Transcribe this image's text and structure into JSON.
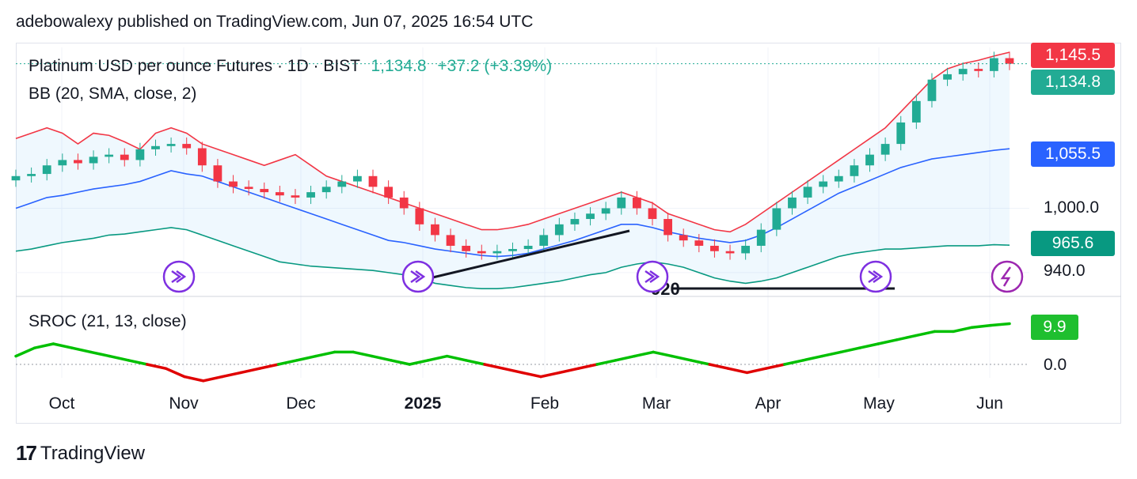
{
  "header": {
    "text": "adebowalexy published on TradingView.com, Jun 07, 2025 16:54 UTC"
  },
  "legend": {
    "symbol": "Platinum USD per ounce Futures · 1D · BIST",
    "last": "1,134.8",
    "change": "+37.2 (+3.39%)",
    "bb": "BB (20, SMA, close, 2)",
    "sroc": "SROC (21, 13, close)"
  },
  "price_tags": {
    "upper": "1,145.5",
    "last": "1,134.8",
    "middle": "1,055.5",
    "lower": "965.6",
    "sroc": "9.9"
  },
  "price_axis": [
    "1,000.0",
    "940.0"
  ],
  "sroc_axis": [
    "0.0"
  ],
  "annotation": "920",
  "footer": {
    "brand": "TradingView"
  },
  "colors": {
    "up": "#22ab94",
    "down": "#f23645",
    "bb_upper": "#f23645",
    "bb_basis": "#2962ff",
    "bb_lower": "#089981",
    "sroc_pos": "#00c000",
    "sroc_neg": "#e00000",
    "marker": "#7e30e1"
  },
  "chart_data": {
    "type": "line",
    "x_ticks": [
      "Oct",
      "Nov",
      "Dec",
      "2025",
      "Feb",
      "Mar",
      "Apr",
      "May",
      "Jun"
    ],
    "price_axis_ticks": [
      1000.0,
      940.0
    ],
    "last_price": 1134.8,
    "bb_upper_last": 1145.5,
    "bb_basis_last": 1055.5,
    "bb_lower_last": 965.6,
    "sroc_last": 9.9,
    "series": [
      {
        "values": [
          1030,
          1032,
          1040,
          1045,
          1042,
          1048,
          1050,
          1045,
          1055,
          1058,
          1060,
          1056,
          1040,
          1025,
          1020,
          1018,
          1015,
          1012,
          1010,
          1015,
          1020,
          1025,
          1030,
          1020,
          1010,
          1000,
          985,
          975,
          965,
          960,
          958,
          960,
          962,
          965,
          975,
          985,
          990,
          995,
          1000,
          1010,
          1000,
          990,
          975,
          970,
          965,
          960,
          958,
          965,
          980,
          1000,
          1010,
          1020,
          1025,
          1030,
          1040,
          1050,
          1060,
          1080,
          1100,
          1120,
          1125,
          1130,
          1128,
          1140,
          1134.8
        ]
      },
      {
        "values": [
          1065,
          1070,
          1075,
          1070,
          1060,
          1070,
          1068,
          1062,
          1055,
          1070,
          1075,
          1070,
          1060,
          1055,
          1050,
          1045,
          1040,
          1045,
          1050,
          1040,
          1030,
          1025,
          1020,
          1015,
          1010,
          1005,
          1000,
          995,
          990,
          985,
          980,
          980,
          982,
          985,
          990,
          995,
          1000,
          1005,
          1010,
          1015,
          1010,
          1005,
          995,
          990,
          985,
          980,
          978,
          985,
          995,
          1005,
          1015,
          1025,
          1035,
          1045,
          1055,
          1065,
          1075,
          1090,
          1105,
          1120,
          1130,
          1135,
          1138,
          1142,
          1145.5
        ]
      },
      {
        "values": [
          1000,
          1005,
          1010,
          1012,
          1015,
          1018,
          1020,
          1022,
          1025,
          1030,
          1035,
          1032,
          1030,
          1025,
          1020,
          1015,
          1010,
          1005,
          1000,
          995,
          990,
          985,
          980,
          975,
          970,
          968,
          965,
          962,
          960,
          958,
          956,
          955,
          956,
          958,
          962,
          966,
          970,
          975,
          980,
          985,
          985,
          982,
          978,
          975,
          972,
          970,
          968,
          970,
          975,
          982,
          990,
          998,
          1006,
          1014,
          1020,
          1026,
          1032,
          1038,
          1042,
          1046,
          1048,
          1050,
          1052,
          1054,
          1055.5
        ]
      },
      {
        "values": [
          960,
          962,
          965,
          968,
          970,
          972,
          975,
          976,
          978,
          980,
          982,
          980,
          975,
          970,
          965,
          960,
          955,
          950,
          948,
          946,
          945,
          944,
          943,
          942,
          940,
          938,
          935,
          930,
          928,
          926,
          925,
          925,
          926,
          928,
          930,
          932,
          935,
          938,
          940,
          945,
          948,
          950,
          948,
          945,
          940,
          935,
          932,
          930,
          932,
          935,
          940,
          945,
          950,
          955,
          958,
          960,
          962,
          962,
          963,
          964,
          965,
          965,
          965,
          966,
          965.6
        ]
      },
      {
        "values": [
          2,
          4,
          5,
          4,
          3,
          2,
          1,
          0,
          -1,
          -3,
          -4,
          -3,
          -2,
          -1,
          0,
          1,
          2,
          3,
          3,
          2,
          1,
          0,
          1,
          2,
          1,
          0,
          -1,
          -2,
          -3,
          -2,
          -1,
          0,
          1,
          2,
          3,
          2,
          1,
          0,
          -1,
          -2,
          -1,
          0,
          1,
          2,
          3,
          4,
          5,
          6,
          7,
          8,
          8,
          9,
          9.5,
          9.9
        ]
      }
    ]
  }
}
